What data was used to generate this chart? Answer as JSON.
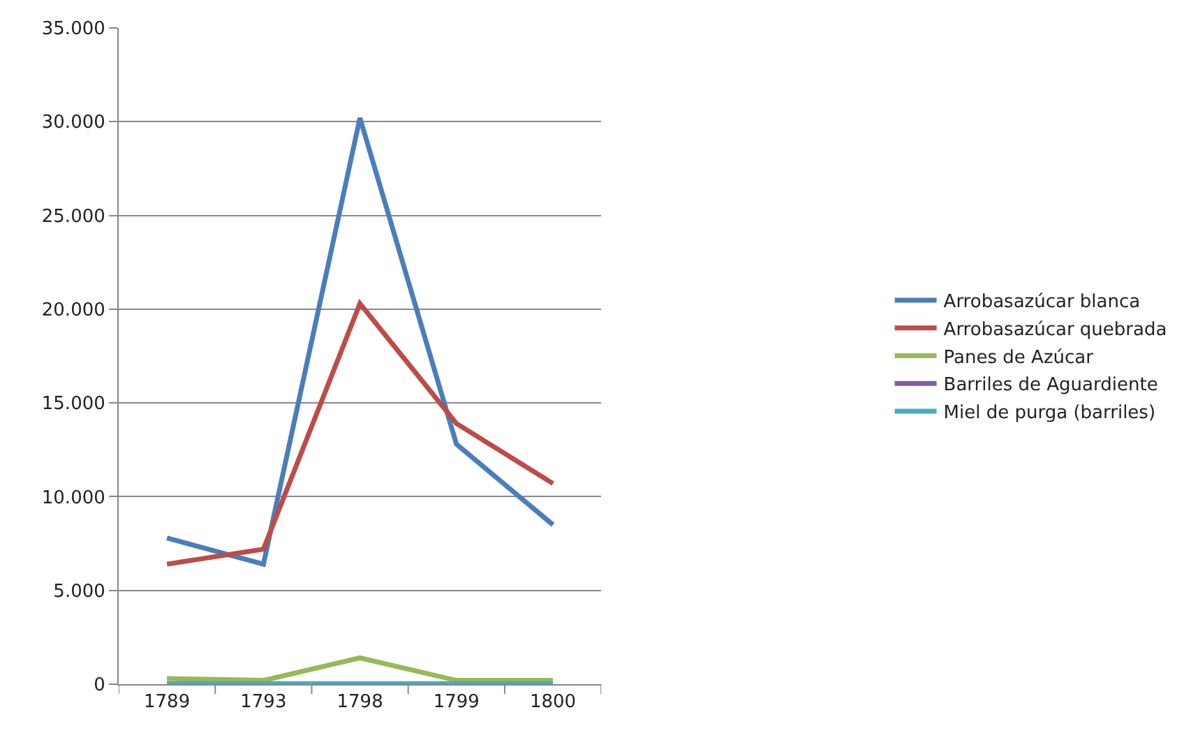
{
  "chart_data": {
    "type": "line",
    "categories": [
      "1789",
      "1793",
      "1798",
      "1799",
      "1800"
    ],
    "series": [
      {
        "name": "Arrobasazúcar blanca",
        "color": "#4a7ebb",
        "values": [
          7800,
          6400,
          30200,
          12800,
          8500
        ]
      },
      {
        "name": "Arrobasazúcar quebrada",
        "color": "#be4b48",
        "values": [
          6400,
          7200,
          20300,
          13900,
          10700
        ]
      },
      {
        "name": "Panes de Azúcar",
        "color": "#98b954",
        "values": [
          300,
          200,
          1400,
          200,
          200
        ]
      },
      {
        "name": "Barriles de Aguardiente",
        "color": "#7d60a0",
        "values": [
          null,
          null,
          null,
          null,
          null
        ]
      },
      {
        "name": "Miel de purga (barriles)",
        "color": "#46aac5",
        "values": [
          30,
          30,
          30,
          30,
          30
        ]
      }
    ],
    "ylim": [
      0,
      35000
    ],
    "yticks": [
      {
        "value": 0,
        "label": "0"
      },
      {
        "value": 5000,
        "label": "5.000"
      },
      {
        "value": 10000,
        "label": "10.000"
      },
      {
        "value": 15000,
        "label": "15.000"
      },
      {
        "value": 20000,
        "label": "20.000"
      },
      {
        "value": 25000,
        "label": "25.000"
      },
      {
        "value": 30000,
        "label": "30.000"
      },
      {
        "value": 35000,
        "label": "35.000"
      }
    ],
    "grid": "y",
    "legend": "right",
    "marker": "none",
    "line_style": "solid"
  }
}
